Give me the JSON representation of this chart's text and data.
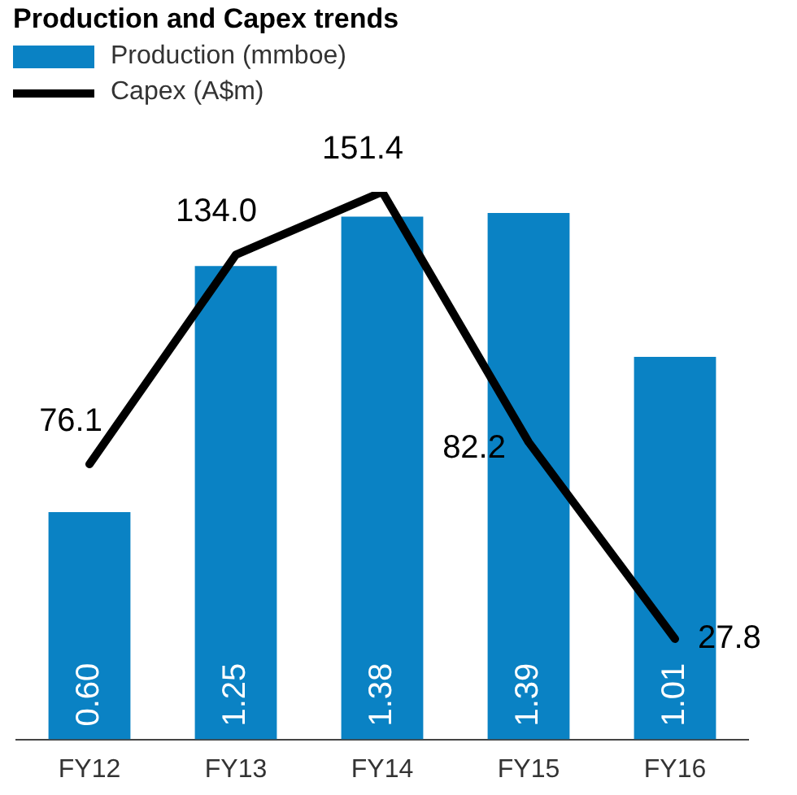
{
  "chart_data": {
    "type": "bar",
    "title": "Production and Capex trends",
    "categories": [
      "FY12",
      "FY13",
      "FY14",
      "FY15",
      "FY16"
    ],
    "series": [
      {
        "name": "Production (mmboe)",
        "color": "#0a82c4",
        "values": [
          0.6,
          1.25,
          1.38,
          1.39,
          1.01
        ],
        "value_labels": [
          "0.60",
          "1.25",
          "1.38",
          "1.39",
          "1.01"
        ]
      },
      {
        "name": "Capex (A$m)",
        "type": "line",
        "axis": "y2",
        "color": "#000000",
        "values": [
          76.1,
          134.0,
          151.4,
          82.2,
          27.8
        ],
        "value_labels": [
          "76.1",
          "134.0",
          "151.4",
          "82.2",
          "27.8"
        ]
      }
    ],
    "data_labels": true,
    "legend": "top left",
    "grid": false,
    "marker": "none",
    "tick_labels": "x"
  }
}
